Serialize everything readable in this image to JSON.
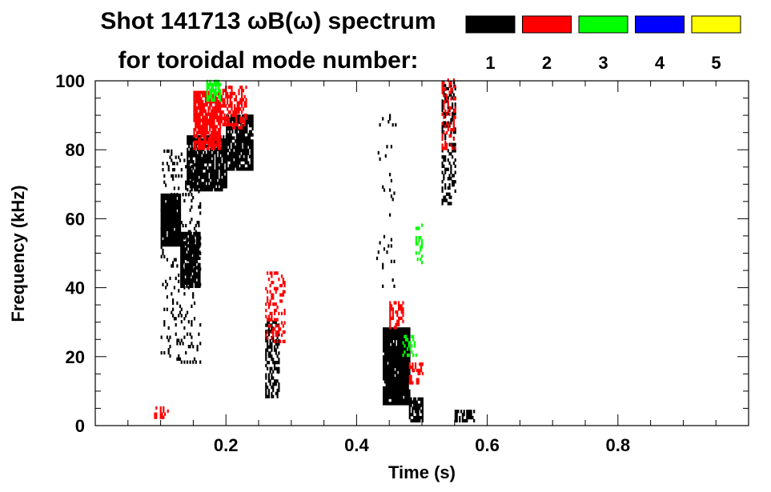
{
  "chart_data": {
    "type": "heatmap",
    "title_line1": "Shot 141713 ωB(ω) spectrum",
    "title_line2": "for toroidal mode number:",
    "xlabel": "Time (s)",
    "ylabel": "Frequency (kHz)",
    "xlim": [
      0.0,
      1.0
    ],
    "ylim": [
      0,
      100
    ],
    "xticks": [
      {
        "value": 0.2,
        "label": "0.2"
      },
      {
        "value": 0.4,
        "label": "0.4"
      },
      {
        "value": 0.6,
        "label": "0.6"
      },
      {
        "value": 0.8,
        "label": "0.8"
      }
    ],
    "yticks": [
      {
        "value": 0,
        "label": "0"
      },
      {
        "value": 20,
        "label": "20"
      },
      {
        "value": 40,
        "label": "40"
      },
      {
        "value": 60,
        "label": "60"
      },
      {
        "value": 80,
        "label": "80"
      },
      {
        "value": 100,
        "label": "100"
      }
    ],
    "x_minor_step": 0.05,
    "y_minor_step": 5,
    "legend_placement": "top-right",
    "legend": [
      {
        "mode": "1",
        "color": "#000000"
      },
      {
        "mode": "2",
        "color": "#ff0000"
      },
      {
        "mode": "3",
        "color": "#00ff00"
      },
      {
        "mode": "4",
        "color": "#0000ff"
      },
      {
        "mode": "5",
        "color": "#ffff00"
      }
    ],
    "regions": [
      {
        "mode": "1",
        "t": [
          0.1,
          0.13
        ],
        "f": [
          52,
          67
        ],
        "density": 0.95
      },
      {
        "mode": "1",
        "t": [
          0.13,
          0.16
        ],
        "f": [
          40,
          56
        ],
        "density": 0.9
      },
      {
        "mode": "1",
        "t": [
          0.14,
          0.2
        ],
        "f": [
          68,
          84
        ],
        "density": 0.8
      },
      {
        "mode": "1",
        "t": [
          0.2,
          0.24
        ],
        "f": [
          74,
          90
        ],
        "density": 0.8
      },
      {
        "mode": "1",
        "t": [
          0.1,
          0.16
        ],
        "f": [
          18,
          80
        ],
        "density": 0.12
      },
      {
        "mode": "1",
        "t": [
          0.26,
          0.28
        ],
        "f": [
          8,
          30
        ],
        "density": 0.5
      },
      {
        "mode": "1",
        "t": [
          0.44,
          0.48
        ],
        "f": [
          6,
          28
        ],
        "density": 0.95
      },
      {
        "mode": "1",
        "t": [
          0.48,
          0.5
        ],
        "f": [
          1,
          8
        ],
        "density": 0.7
      },
      {
        "mode": "1",
        "t": [
          0.53,
          0.55
        ],
        "f": [
          64,
          100
        ],
        "density": 0.35
      },
      {
        "mode": "1",
        "t": [
          0.55,
          0.58
        ],
        "f": [
          1,
          4
        ],
        "density": 0.6
      },
      {
        "mode": "1",
        "t": [
          0.43,
          0.46
        ],
        "f": [
          40,
          92
        ],
        "density": 0.05
      },
      {
        "mode": "2",
        "t": [
          0.15,
          0.19
        ],
        "f": [
          80,
          97
        ],
        "density": 0.85
      },
      {
        "mode": "2",
        "t": [
          0.19,
          0.23
        ],
        "f": [
          86,
          98
        ],
        "density": 0.5
      },
      {
        "mode": "2",
        "t": [
          0.26,
          0.29
        ],
        "f": [
          24,
          44
        ],
        "density": 0.3
      },
      {
        "mode": "2",
        "t": [
          0.45,
          0.47
        ],
        "f": [
          28,
          36
        ],
        "density": 0.5
      },
      {
        "mode": "2",
        "t": [
          0.48,
          0.5
        ],
        "f": [
          12,
          18
        ],
        "density": 0.4
      },
      {
        "mode": "2",
        "t": [
          0.53,
          0.55
        ],
        "f": [
          80,
          100
        ],
        "density": 0.35
      },
      {
        "mode": "2",
        "t": [
          0.09,
          0.11
        ],
        "f": [
          2,
          5
        ],
        "density": 0.4
      },
      {
        "mode": "3",
        "t": [
          0.17,
          0.19
        ],
        "f": [
          94,
          100
        ],
        "density": 0.7
      },
      {
        "mode": "3",
        "t": [
          0.49,
          0.5
        ],
        "f": [
          46,
          58
        ],
        "density": 0.3
      },
      {
        "mode": "3",
        "t": [
          0.47,
          0.49
        ],
        "f": [
          20,
          26
        ],
        "density": 0.3
      }
    ]
  }
}
